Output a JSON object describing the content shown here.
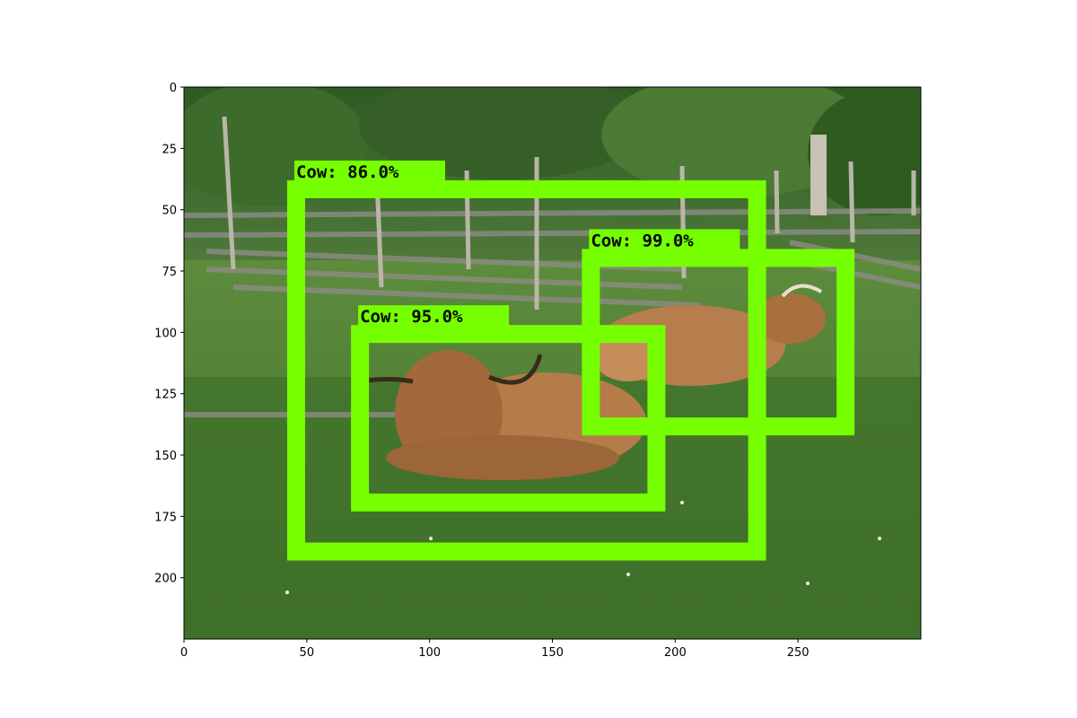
{
  "image": {
    "description_shown": "photo",
    "x_ticks": [
      "0",
      "50",
      "100",
      "150",
      "200",
      "250"
    ],
    "y_ticks": [
      "0",
      "25",
      "50",
      "75",
      "100",
      "125",
      "150",
      "175",
      "200"
    ],
    "x_tick_values": [
      0,
      50,
      100,
      150,
      200,
      250
    ],
    "y_tick_values": [
      0,
      25,
      50,
      75,
      100,
      125,
      150,
      175,
      200
    ],
    "x_range": [
      0,
      300
    ],
    "y_range": [
      225,
      0
    ],
    "box_color": "#76ff00"
  },
  "detections": [
    {
      "label": "Cow:  86.0%",
      "x0": 42,
      "y0": 38,
      "x1": 237,
      "y1": 193
    },
    {
      "label": "Cow:  99.0%",
      "x0": 162,
      "y0": 66,
      "x1": 273,
      "y1": 142
    },
    {
      "label": "Cow:  95.0%",
      "x0": 68,
      "y0": 97,
      "x1": 196,
      "y1": 173
    }
  ]
}
